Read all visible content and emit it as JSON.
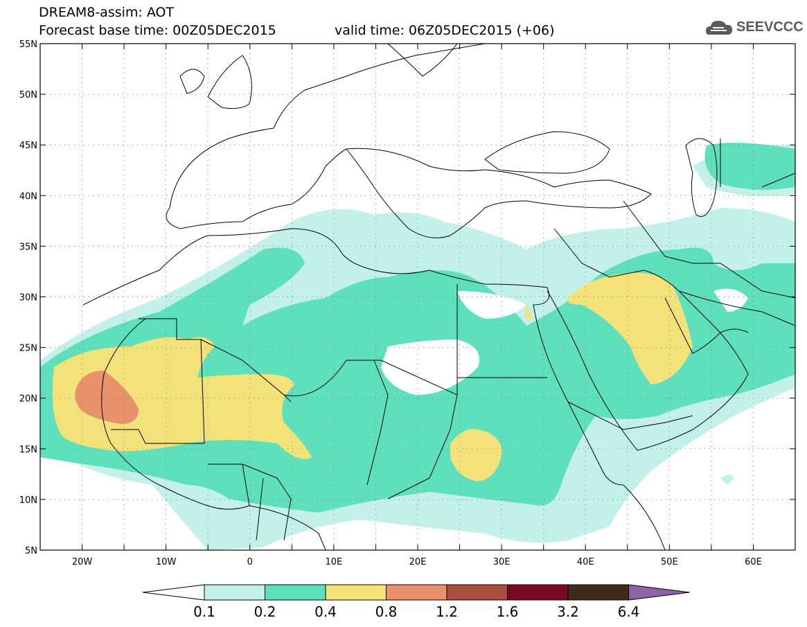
{
  "header": {
    "line1": "DREAM8-assim: AOT",
    "line2": "Forecast base time: 00Z05DEC2015",
    "line3": "valid time: 06Z05DEC2015 (+06)"
  },
  "logo": {
    "text": "SEEVCCC",
    "icon": "cloud-icon"
  },
  "map": {
    "region": "North Africa, Middle East and Europe",
    "lon_range": [
      -25,
      65
    ],
    "lat_range": [
      5,
      55
    ],
    "lat_labels": [
      "55N",
      "50N",
      "45N",
      "40N",
      "35N",
      "30N",
      "25N",
      "20N",
      "15N",
      "10N",
      "5N"
    ],
    "lon_labels": [
      "20W",
      "10W",
      "0",
      "10E",
      "20E",
      "30E",
      "40E",
      "50E",
      "60E"
    ],
    "grid": "dotted every 5 degrees"
  },
  "legend": {
    "labels": [
      "0.1",
      "0.2",
      "0.4",
      "0.8",
      "1.2",
      "1.6",
      "3.2",
      "6.4"
    ],
    "colors": [
      "#ffffff",
      "#c3f1e9",
      "#5fe0bc",
      "#f3e27a",
      "#e8916a",
      "#a84f3f",
      "#7a0a23",
      "#3f2b19",
      "#8c64a5"
    ]
  }
}
